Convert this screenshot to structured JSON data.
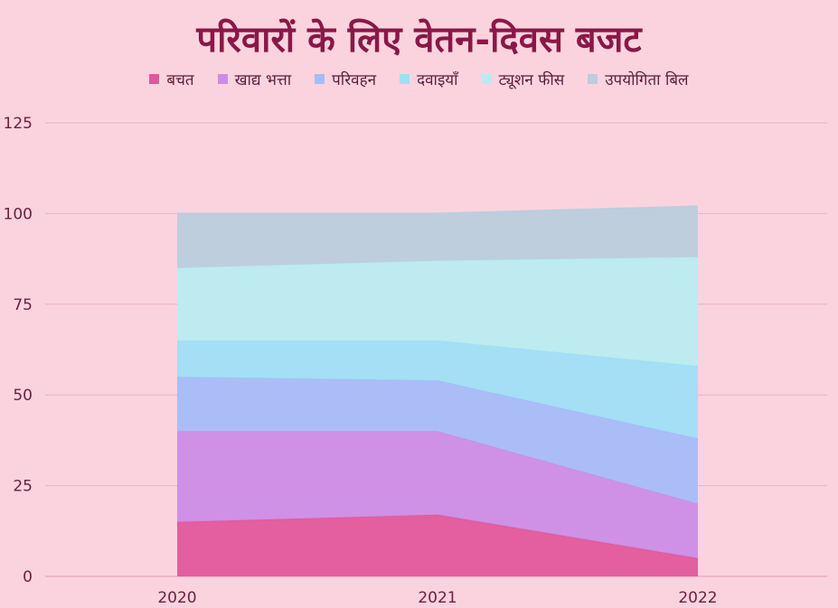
{
  "chart_data": {
    "type": "area",
    "stacked": true,
    "title": "परिवारों के लिए वेतन-दिवस बजट",
    "x": [
      "2020",
      "2021",
      "2022"
    ],
    "ylim": [
      0,
      125
    ],
    "yticks": [
      "0",
      "25",
      "50",
      "75",
      "100",
      "125"
    ],
    "grid": true,
    "legend_position": "top",
    "series": [
      {
        "name": "बचत",
        "color": "#e2589b",
        "values": [
          15,
          17,
          5
        ]
      },
      {
        "name": "खाद्य भत्ता",
        "color": "#cc8de6",
        "values": [
          25,
          23,
          15
        ]
      },
      {
        "name": "परिवहन",
        "color": "#a6bcf8",
        "values": [
          15,
          14,
          18
        ]
      },
      {
        "name": "दवाइयाँ",
        "color": "#9fdff5",
        "values": [
          10,
          11,
          20
        ]
      },
      {
        "name": "ट्यूशन फीस",
        "color": "#b9ecef",
        "values": [
          20,
          22,
          30
        ]
      },
      {
        "name": "उपयोगिता बिल",
        "color": "#bccddc",
        "values": [
          15,
          13,
          14
        ]
      }
    ]
  }
}
